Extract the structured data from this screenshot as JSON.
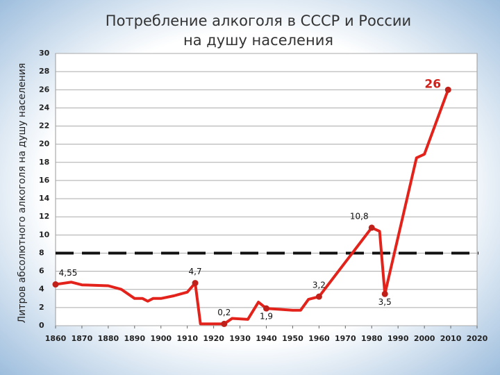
{
  "chart_data": {
    "type": "line",
    "title": [
      "Потребление алкоголя в СССР и России",
      "на душу населения"
    ],
    "y_label": "Литров абсолютного алкоголя на душу населения",
    "x": [
      1860,
      1866,
      1870,
      1880,
      1885,
      1890,
      1893,
      1895,
      1897,
      1900,
      1905,
      1910,
      1913,
      1915,
      1920,
      1924,
      1927,
      1933,
      1937,
      1940,
      1950,
      1953,
      1956,
      1960,
      1980,
      1983,
      1985,
      1997,
      2000,
      2009
    ],
    "series": [
      {
        "color": "#e3231b",
        "values": [
          4.55,
          4.8,
          4.5,
          4.4,
          4.0,
          3.0,
          3.0,
          2.7,
          3.0,
          3.0,
          3.3,
          3.7,
          4.7,
          0.2,
          0.2,
          0.2,
          0.8,
          0.7,
          2.6,
          1.9,
          1.7,
          1.7,
          2.9,
          3.2,
          10.8,
          10.4,
          3.5,
          18.5,
          18.9,
          26
        ],
        "value_labels": [
          "4,55",
          null,
          null,
          null,
          null,
          null,
          null,
          null,
          null,
          null,
          null,
          null,
          "4,7",
          null,
          null,
          "0,2",
          null,
          null,
          null,
          "1,9",
          null,
          null,
          null,
          "3,2",
          "10,8",
          null,
          "3,5",
          null,
          null,
          "26"
        ]
      }
    ],
    "threshold": 8,
    "xlim": [
      1860,
      2020
    ],
    "xticks": [
      1860,
      1870,
      1880,
      1890,
      1900,
      1910,
      1920,
      1930,
      1940,
      1950,
      1960,
      1970,
      1980,
      1990,
      2000,
      2010,
      2020
    ],
    "ylim": [
      0,
      30
    ],
    "yticks": [
      0,
      2,
      4,
      6,
      8,
      10,
      12,
      14,
      16,
      18,
      20,
      22,
      24,
      26,
      28,
      30
    ],
    "grid": true
  }
}
